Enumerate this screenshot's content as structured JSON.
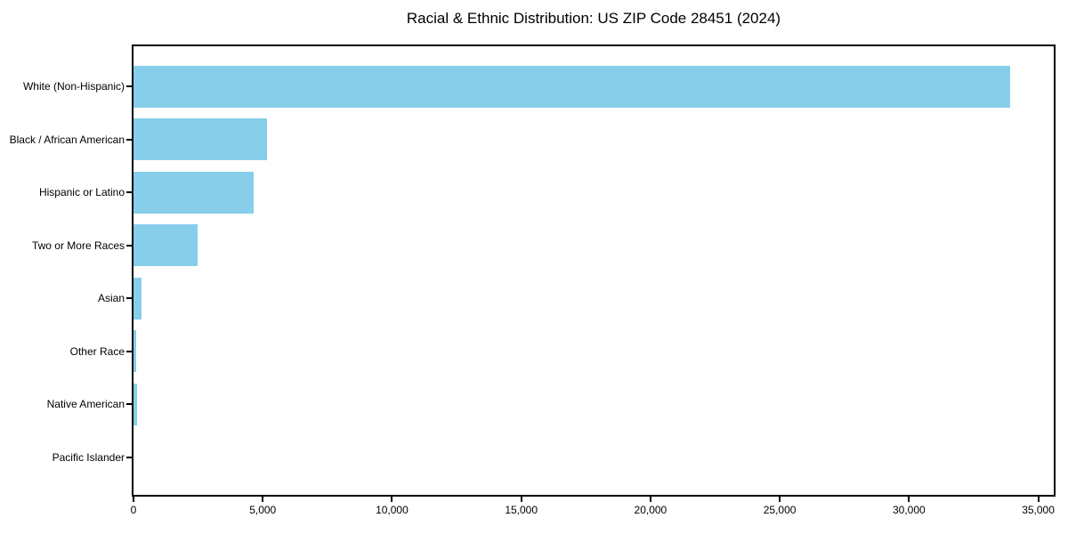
{
  "chart_data": {
    "type": "bar",
    "orientation": "horizontal",
    "title": "Racial & Ethnic Distribution: US ZIP Code 28451 (2024)",
    "categories": [
      "White (Non-Hispanic)",
      "Black / African American",
      "Hispanic or Latino",
      "Two or More Races",
      "Asian",
      "Other Race",
      "Native American",
      "Pacific Islander"
    ],
    "values": [
      33900,
      5150,
      4640,
      2480,
      310,
      120,
      140,
      0
    ],
    "xlabel": "",
    "ylabel": "",
    "xlim": [
      0,
      35600
    ],
    "x_tick_values": [
      0,
      5000,
      10000,
      15000,
      20000,
      25000,
      30000,
      35000
    ],
    "x_tick_labels": [
      "0",
      "5,000",
      "10,000",
      "15,000",
      "20,000",
      "25,000",
      "30,000",
      "35,000"
    ],
    "grid": false,
    "legend_position": "none",
    "bar_color": "#87CEEB",
    "axis_color": "#000000",
    "text_color": "#000000",
    "background_color": "#FFFFFF"
  }
}
